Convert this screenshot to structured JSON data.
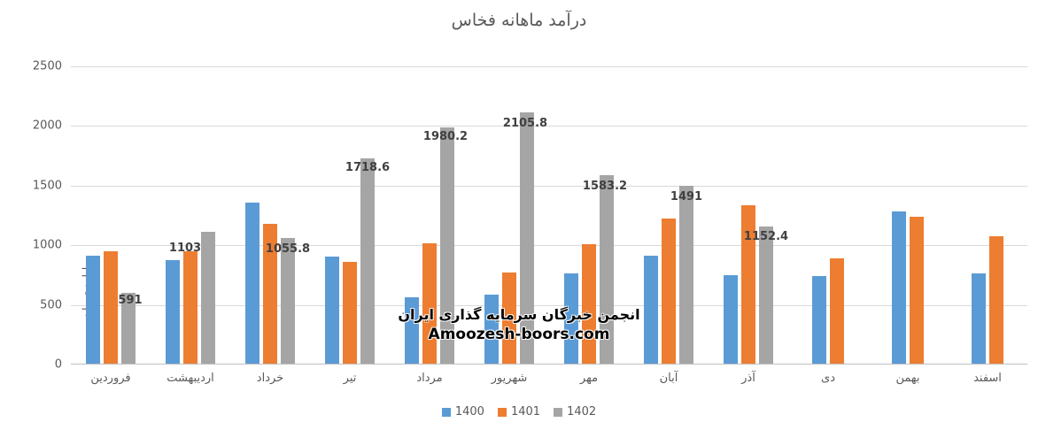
{
  "title": "درآمد ماهانه فخاس",
  "watermark": {
    "line1": "انجمن خبرگان سرمایه گذاری ایران",
    "line2": "Amoozesh-boors.com"
  },
  "colors": {
    "series_1400": "#5B9BD5",
    "series_1401": "#ED7D31",
    "series_1402": "#A5A5A5",
    "gridline": "#d9d9d9",
    "axis_line": "#bfbfbf",
    "text_gray": "#595959",
    "data_label": "#404040"
  },
  "chart_data": {
    "type": "bar",
    "title": "درآمد ماهانه فخاس",
    "xlabel": "",
    "ylabel": "میلیارد تومان",
    "ylim": [
      0,
      2500
    ],
    "y_ticks": [
      0,
      500,
      1000,
      1500,
      2000,
      2500
    ],
    "grid": true,
    "legend_position": "bottom",
    "categories": [
      "فروردین",
      "اردیبهشت",
      "خرداد",
      "تیر",
      "مرداد",
      "شهریور",
      "مهر",
      "آبان",
      "آذر",
      "دی",
      "بهمن",
      "اسفند"
    ],
    "series": [
      {
        "name": "1400",
        "color": "#5B9BD5",
        "values": [
          905,
          865,
          1350,
          900,
          555,
          580,
          755,
          905,
          740,
          735,
          1275,
          760
        ]
      },
      {
        "name": "1401",
        "color": "#ED7D31",
        "values": [
          945,
          945,
          1175,
          850,
          1010,
          765,
          1005,
          1215,
          1325,
          885,
          1235,
          1070
        ]
      },
      {
        "name": "1402",
        "color": "#A5A5A5",
        "values": [
          591,
          1103,
          1055.8,
          1718.6,
          1980.2,
          2105.8,
          1583.2,
          1491,
          1152.4,
          null,
          null,
          null
        ],
        "data_labels": [
          "591",
          "1103",
          "1055.8",
          "1718.6",
          "1980.2",
          "2105.8",
          "1583.2",
          "1491",
          "1152.4",
          null,
          null,
          null
        ],
        "label_dx": [
          2,
          -26,
          0,
          0,
          -2,
          -2,
          -2,
          0,
          0,
          0,
          0,
          0
        ],
        "label_dy": [
          2,
          12,
          6,
          4,
          4,
          6,
          6,
          6,
          5,
          0,
          0,
          0
        ]
      }
    ]
  }
}
